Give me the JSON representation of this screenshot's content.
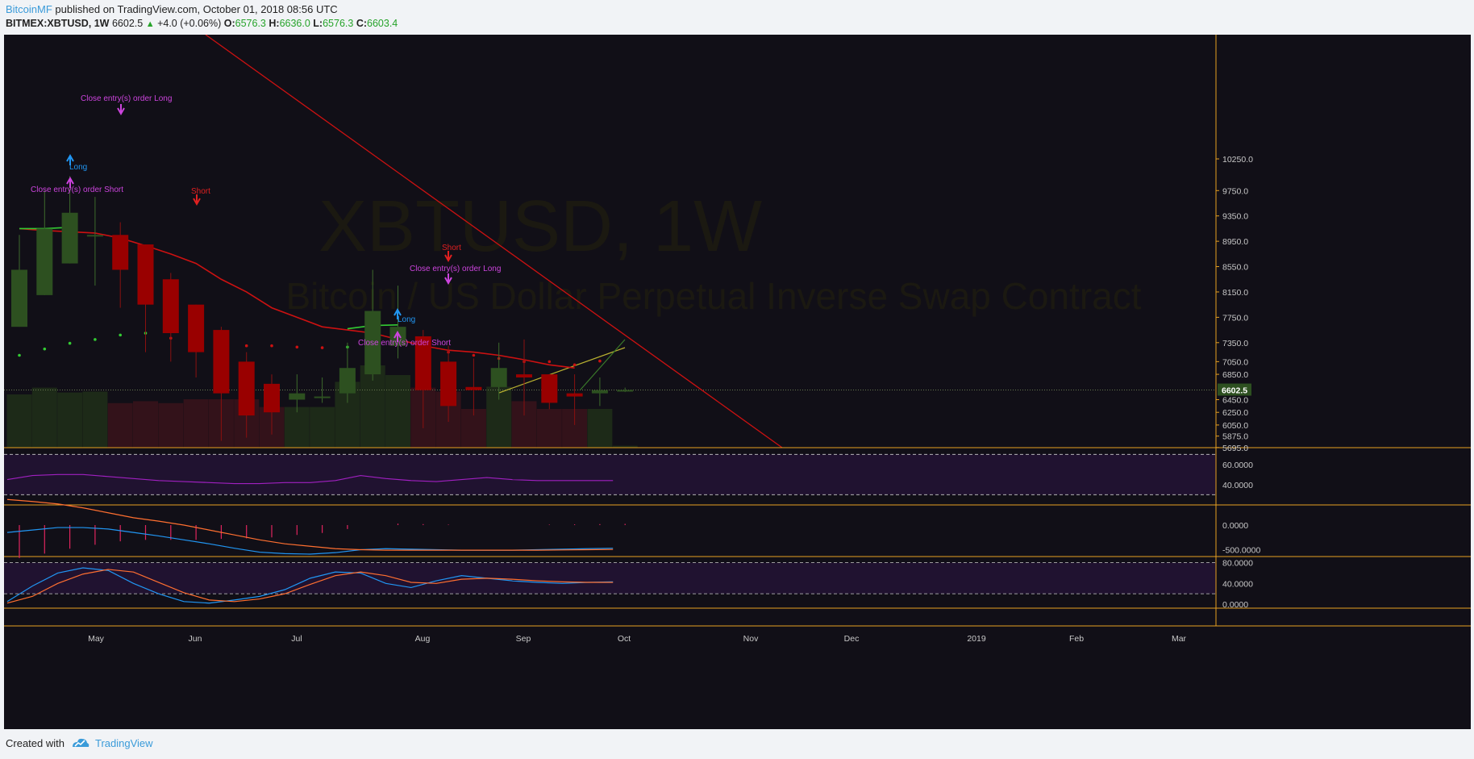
{
  "header": {
    "author": "BitcoinMF",
    "published_text": "published on TradingView.com, October 01, 2018 08:56 UTC",
    "symbol": "BITMEX:XBTUSD, 1W",
    "last": "6602.5",
    "change": "+4.0 (+0.06%)",
    "o_label": "O:",
    "o_value": "6576.3",
    "h_label": "H:",
    "h_value": "6636.0",
    "l_label": "L:",
    "l_value": "6576.3",
    "c_label": "C:",
    "c_value": "6603.4"
  },
  "watermark": {
    "title": "XBTUSD, 1W",
    "subtitle": "Bitcoin / US Dollar Perpetual Inverse Swap Contract"
  },
  "footer": {
    "created_with": "Created with",
    "brand": "TradingView"
  },
  "colors": {
    "background": "#110f17",
    "bull": "#2d5020",
    "bear": "#990000",
    "ema": "#cc1111",
    "trendline": "#cc1111",
    "accent_orange": "#e8a020",
    "strategy_label": "#cc44dd",
    "long_label": "#2196f3",
    "short_label": "#e02020",
    "rsi_band": "#201230",
    "stoch_k": "#2196f3",
    "stoch_d": "#ff6f30"
  },
  "chart_data": [
    {
      "type": "candlestick",
      "pane": "price",
      "x_labels": [
        "May",
        "Jun",
        "Jul",
        "Aug",
        "Sep",
        "Oct",
        "Nov",
        "Dec",
        "2019",
        "Feb",
        "Mar"
      ],
      "y_ticks": [
        10250,
        9750,
        9350,
        8950,
        8550,
        8150,
        7750,
        7350,
        7050,
        6850,
        6450,
        6250,
        6050,
        5875,
        5695
      ],
      "y_tick_labels": [
        "10250.0",
        "9750.0",
        "9350.0",
        "8950.0",
        "8550.0",
        "8150.0",
        "7750.0",
        "7350.0",
        "7050.0",
        "6850.0",
        "6450.0",
        "6250.0",
        "6050.0",
        "5875.0",
        "5695.0"
      ],
      "last_price": "6602.5",
      "candles": [
        {
          "o": 7600,
          "h": 9050,
          "l": 7600,
          "c": 8500
        },
        {
          "o": 8100,
          "h": 9750,
          "l": 8100,
          "c": 9150
        },
        {
          "o": 8600,
          "h": 9980,
          "l": 8600,
          "c": 9400
        },
        {
          "o": 9050,
          "h": 9650,
          "l": 8250,
          "c": 9050
        },
        {
          "o": 9050,
          "h": 9250,
          "l": 7900,
          "c": 8500
        },
        {
          "o": 8900,
          "h": 8900,
          "l": 7200,
          "c": 7950
        },
        {
          "o": 8350,
          "h": 8450,
          "l": 7050,
          "c": 7500
        },
        {
          "o": 7950,
          "h": 7950,
          "l": 6800,
          "c": 7200
        },
        {
          "o": 7550,
          "h": 7600,
          "l": 5800,
          "c": 6550
        },
        {
          "o": 7050,
          "h": 7200,
          "l": 5850,
          "c": 6200
        },
        {
          "o": 6700,
          "h": 6850,
          "l": 5900,
          "c": 6250
        },
        {
          "o": 6450,
          "h": 6850,
          "l": 6250,
          "c": 6550
        },
        {
          "o": 6500,
          "h": 6800,
          "l": 6400,
          "c": 6500
        },
        {
          "o": 6550,
          "h": 7350,
          "l": 6400,
          "c": 6950
        },
        {
          "o": 6850,
          "h": 8500,
          "l": 6750,
          "c": 7850
        },
        {
          "o": 7300,
          "h": 8250,
          "l": 7100,
          "c": 7600
        },
        {
          "o": 7450,
          "h": 7550,
          "l": 6000,
          "c": 6600
        },
        {
          "o": 7050,
          "h": 7300,
          "l": 6100,
          "c": 6350
        },
        {
          "o": 6650,
          "h": 7100,
          "l": 6200,
          "c": 6600
        },
        {
          "o": 6650,
          "h": 7350,
          "l": 6450,
          "c": 6950
        },
        {
          "o": 6850,
          "h": 7400,
          "l": 6200,
          "c": 6800
        },
        {
          "o": 6850,
          "h": 6850,
          "l": 6300,
          "c": 6400
        },
        {
          "o": 6550,
          "h": 6850,
          "l": 6050,
          "c": 6500
        },
        {
          "o": 6550,
          "h": 6800,
          "l": 6350,
          "c": 6600
        },
        {
          "o": 6580,
          "h": 6640,
          "l": 6570,
          "c": 6603
        }
      ],
      "volume_relative": [
        0.55,
        0.62,
        0.57,
        0.58,
        0.46,
        0.48,
        0.46,
        0.5,
        0.5,
        0.5,
        0.42,
        0.42,
        0.42,
        0.68,
        0.85,
        0.75,
        0.62,
        0.58,
        0.4,
        0.63,
        0.48,
        0.4,
        0.4,
        0.4,
        0.02
      ],
      "ema": [
        9150,
        9120,
        9100,
        9080,
        9000,
        8880,
        8750,
        8600,
        8350,
        8150,
        7900,
        7750,
        7600,
        7550,
        7500,
        7400,
        7300,
        7230,
        7200,
        7150,
        7080,
        7000,
        6950
      ],
      "annotations": [
        {
          "text": "Close entry(s) order Long",
          "color": "strategy"
        },
        {
          "text": "Long",
          "color": "long"
        },
        {
          "text": "Close entry(s) order Short",
          "color": "strategy"
        },
        {
          "text": "Short",
          "color": "short"
        },
        {
          "text": "Long",
          "color": "long"
        },
        {
          "text": "Close entry(s) order Short",
          "color": "strategy"
        },
        {
          "text": "Short",
          "color": "short"
        },
        {
          "text": "Close entry(s) order Long",
          "color": "strategy"
        }
      ]
    },
    {
      "type": "line",
      "pane": "rsi",
      "y_ticks": [
        60,
        40
      ],
      "y_tick_labels": [
        "60.0000",
        "40.0000"
      ],
      "band": [
        70,
        30
      ],
      "values": [
        45,
        49,
        50,
        50,
        48,
        46,
        44,
        43,
        42,
        41,
        41,
        42,
        42,
        44,
        49,
        46,
        44,
        43,
        45,
        47,
        45,
        44,
        44,
        44,
        44
      ]
    },
    {
      "type": "line",
      "pane": "macd",
      "y_ticks": [
        0,
        -500
      ],
      "y_tick_labels": [
        "0.0000",
        "-500.0000"
      ],
      "macd": [
        -150,
        -100,
        -50,
        -50,
        -80,
        -150,
        -220,
        -300,
        -380,
        -470,
        -550,
        -580,
        -590,
        -560,
        -500,
        -480,
        -490,
        -500,
        -510,
        -510,
        -510,
        -500,
        -490,
        -480,
        -470
      ],
      "signal": [
        520,
        480,
        430,
        350,
        250,
        150,
        80,
        0,
        -100,
        -200,
        -300,
        -380,
        -430,
        -480,
        -500,
        -510,
        -510,
        -510,
        -510,
        -510,
        -510,
        -510,
        -505,
        -500,
        -495
      ]
    },
    {
      "type": "line",
      "pane": "stoch",
      "y_ticks": [
        80,
        40,
        0
      ],
      "y_tick_labels": [
        "80.0000",
        "40.0000",
        "0.0000"
      ],
      "band": [
        80,
        20
      ],
      "k": [
        5,
        35,
        60,
        70,
        65,
        40,
        20,
        5,
        2,
        8,
        15,
        28,
        50,
        62,
        60,
        40,
        32,
        45,
        55,
        50,
        45,
        42,
        40,
        42,
        43
      ],
      "d": [
        2,
        15,
        40,
        58,
        67,
        62,
        42,
        22,
        8,
        5,
        10,
        20,
        38,
        55,
        62,
        55,
        42,
        40,
        48,
        50,
        48,
        45,
        43,
        42,
        42
      ]
    }
  ]
}
